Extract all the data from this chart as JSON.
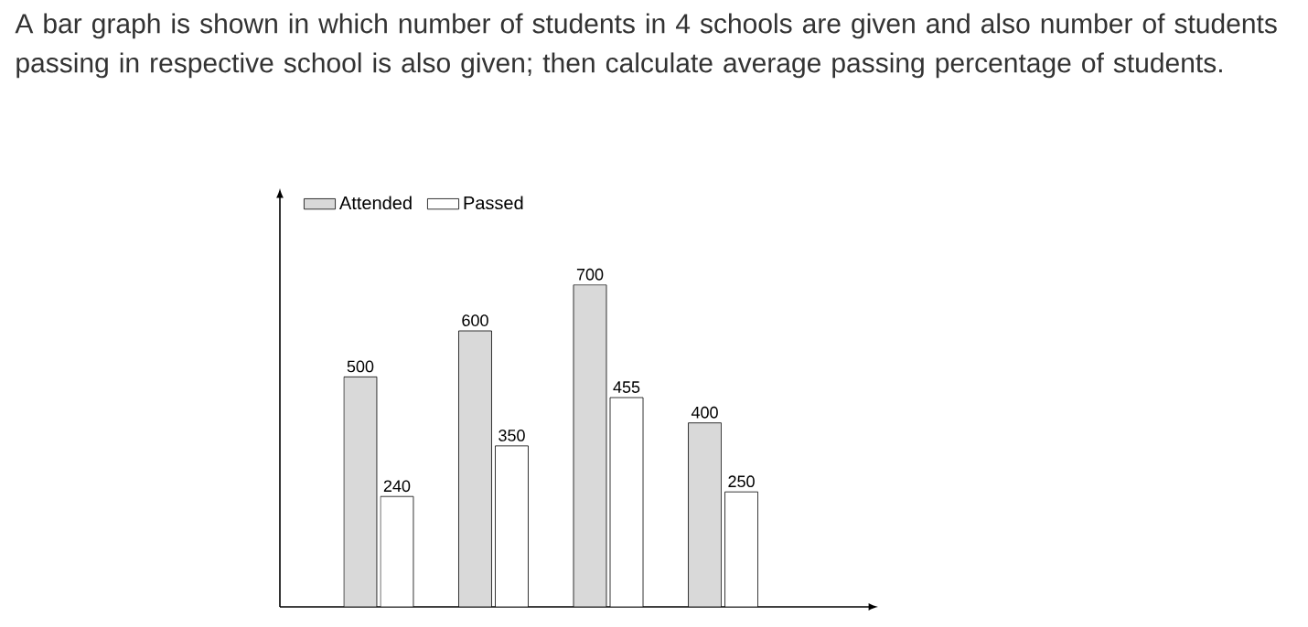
{
  "chart_data": {
    "type": "bar",
    "title": "A bar graph is shown in which number of students in 4 schools are given and also number of students passing in respective school is also given; then calculate average passing percentage of students.",
    "categories": [
      null,
      null,
      null,
      null
    ],
    "series": [
      {
        "name": "Attended",
        "color": "#d9d9d9",
        "values": [
          500,
          600,
          700,
          400
        ]
      },
      {
        "name": "Passed",
        "color": "#ffffff",
        "values": [
          240,
          350,
          455,
          250
        ]
      }
    ],
    "data_labels": true,
    "legend": "top left"
  }
}
